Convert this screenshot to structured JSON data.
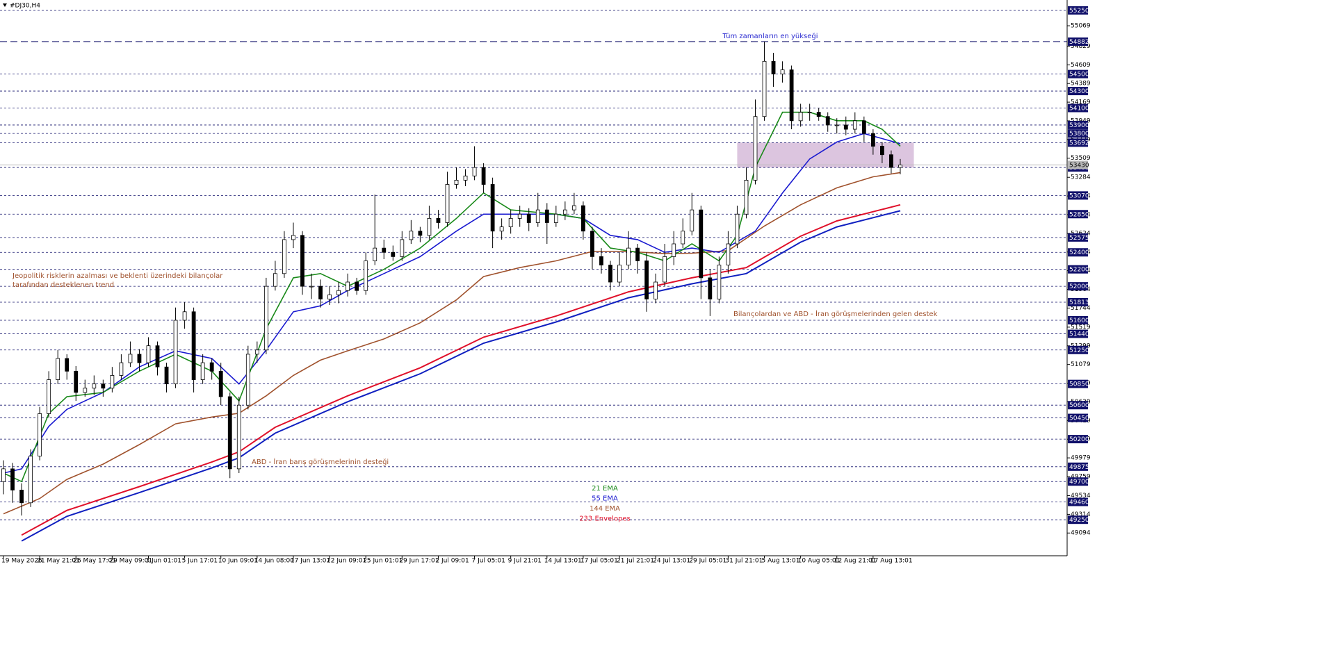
{
  "chart_data": {
    "type": "candlestick",
    "title": "#DJ30,H4",
    "categories": [
      "19 May 2026",
      null,
      null,
      null,
      "21 May 21:01",
      null,
      null,
      null,
      "26 May 17:01",
      null,
      null,
      null,
      "29 May 09:01",
      null,
      null,
      null,
      "3 Jun 01:01",
      null,
      null,
      null,
      "5 Jun 17:01",
      null,
      null,
      null,
      "10 Jun 09:01",
      null,
      null,
      null,
      "14 Jun 08:00",
      null,
      null,
      null,
      "17 Jun 13:01",
      null,
      null,
      null,
      "22 Jun 09:01",
      null,
      null,
      null,
      "25 Jun 01:01",
      null,
      null,
      null,
      "29 Jun 17:01",
      null,
      null,
      null,
      "2 Jul 09:01",
      null,
      null,
      null,
      "7 Jul 05:01",
      null,
      null,
      null,
      "9 Jul 21:01",
      null,
      null,
      null,
      "14 Jul 13:01",
      null,
      null,
      null,
      "17 Jul 05:01",
      null,
      null,
      null,
      "21 Jul 21:01",
      null,
      null,
      null,
      "24 Jul 13:01",
      null,
      null,
      null,
      "29 Jul 05:01",
      null,
      null,
      null,
      "31 Jul 21:01",
      null,
      null,
      null,
      "5 Aug 13:01",
      null,
      null,
      null,
      "10 Aug 05:01",
      null,
      null,
      null,
      "12 Aug 21:01",
      null,
      null,
      null,
      "17 Aug 13:01",
      null,
      null,
      null
    ],
    "open": [
      49700,
      49850,
      49600,
      49450,
      50000,
      50500,
      50900,
      51150,
      51000,
      50750,
      50800,
      50850,
      50800,
      50950,
      51100,
      51200,
      51100,
      51300,
      51050,
      50850,
      51600,
      51700,
      50900,
      51100,
      51000,
      50700,
      49850,
      50600,
      51200,
      51250,
      52000,
      52150,
      52550,
      52600,
      52000,
      52000,
      51850,
      51900,
      51950,
      52050,
      51950,
      52300,
      52450,
      52400,
      52350,
      52550,
      52650,
      52600,
      52800,
      52750,
      53200,
      53250,
      53300,
      53400,
      53200,
      52650,
      52700,
      52800,
      52850,
      52750,
      52900,
      52750,
      52850,
      52900,
      52950,
      52650,
      52350,
      52250,
      52050,
      52250,
      52450,
      52300,
      51850,
      52050,
      52350,
      52500,
      52650,
      52900,
      52100,
      51850,
      52250,
      52500,
      52850,
      53250,
      54000,
      54650,
      54500,
      54550,
      53950,
      54050,
      54050,
      54000,
      53900,
      53900,
      53850,
      53950,
      53800,
      53650,
      53550,
      53400
    ],
    "high": [
      49950,
      49920,
      49680,
      50080,
      50580,
      51000,
      51250,
      51200,
      51060,
      50900,
      50950,
      50900,
      51050,
      51200,
      51350,
      51260,
      51400,
      51350,
      51100,
      51750,
      51813,
      51750,
      51200,
      51150,
      51100,
      50750,
      50700,
      51300,
      51350,
      52100,
      52300,
      52650,
      52750,
      52650,
      52150,
      52080,
      52000,
      52050,
      52150,
      52100,
      52400,
      53080,
      52550,
      52480,
      52650,
      52780,
      52700,
      52950,
      52900,
      53350,
      53400,
      53380,
      53650,
      53450,
      53280,
      52800,
      52900,
      52950,
      52920,
      53100,
      52980,
      52950,
      53000,
      53100,
      53000,
      52700,
      52450,
      52300,
      52400,
      52650,
      52500,
      52400,
      52150,
      52500,
      52650,
      52800,
      53100,
      52950,
      52200,
      52350,
      52650,
      52950,
      53400,
      54200,
      54882,
      54750,
      54650,
      54600,
      54150,
      54150,
      54100,
      54050,
      53980,
      54000,
      54050,
      54000,
      53850,
      53700,
      53600,
      53500
    ],
    "low": [
      49550,
      49450,
      49300,
      49400,
      49950,
      50450,
      50850,
      50900,
      50650,
      50700,
      50720,
      50700,
      50750,
      50900,
      51050,
      51000,
      51050,
      50950,
      50750,
      50800,
      51500,
      50750,
      50850,
      50900,
      50600,
      49740,
      49800,
      50550,
      51100,
      51200,
      51950,
      52100,
      52450,
      51900,
      51850,
      51750,
      51780,
      51800,
      51880,
      51900,
      51900,
      52250,
      52320,
      52300,
      52300,
      52500,
      52520,
      52550,
      52680,
      52700,
      53150,
      53180,
      53250,
      53100,
      52450,
      52550,
      52620,
      52700,
      52650,
      52700,
      52500,
      52700,
      52780,
      52850,
      52550,
      52200,
      52150,
      51950,
      52000,
      52200,
      52150,
      51700,
      51800,
      52000,
      52250,
      52450,
      52600,
      51850,
      51650,
      51800,
      52150,
      52450,
      52800,
      53200,
      53950,
      54350,
      54400,
      53850,
      53880,
      53950,
      53950,
      53820,
      53800,
      53780,
      53800,
      53700,
      53550,
      53450,
      53330,
      53320
    ],
    "close": [
      49850,
      49600,
      49450,
      50000,
      50500,
      50900,
      51150,
      51000,
      50750,
      50800,
      50850,
      50800,
      50950,
      51100,
      51200,
      51100,
      51300,
      51050,
      50850,
      51600,
      51700,
      50900,
      51100,
      51000,
      50700,
      49850,
      50600,
      51200,
      51250,
      52000,
      52150,
      52550,
      52600,
      52000,
      52000,
      51850,
      51900,
      51950,
      52050,
      51950,
      52300,
      52450,
      52400,
      52350,
      52550,
      52650,
      52600,
      52800,
      52750,
      53200,
      53250,
      53300,
      53400,
      53200,
      52650,
      52700,
      52800,
      52850,
      52750,
      52900,
      52750,
      52850,
      52900,
      52950,
      52650,
      52350,
      52250,
      52050,
      52250,
      52450,
      52300,
      51850,
      52050,
      52350,
      52500,
      52650,
      52900,
      52100,
      51850,
      52250,
      52500,
      52850,
      53250,
      54000,
      54650,
      54500,
      54550,
      53950,
      54050,
      54050,
      54000,
      53900,
      53900,
      53850,
      53950,
      53800,
      53650,
      53550,
      53400,
      53430
    ],
    "series": [
      {
        "name": "21 EMA",
        "color": "#1a8a1a",
        "x": [
          0,
          2,
          5,
          7,
          11,
          15,
          19,
          23,
          26,
          29,
          32,
          35,
          38,
          42,
          46,
          50,
          53,
          56,
          61,
          64,
          67,
          70,
          73,
          76,
          79,
          81,
          83,
          86,
          89,
          92,
          95,
          97,
          99
        ],
        "values": [
          49800,
          49700,
          50500,
          50700,
          50750,
          51000,
          51200,
          51000,
          50650,
          51500,
          52100,
          52150,
          52000,
          52200,
          52450,
          52800,
          53100,
          52900,
          52850,
          52800,
          52450,
          52400,
          52300,
          52500,
          52300,
          52600,
          53400,
          54050,
          54050,
          53950,
          53950,
          53850,
          53650
        ]
      },
      {
        "name": "55 EMA",
        "color": "#1a1ad0",
        "x": [
          0,
          2,
          5,
          7,
          11,
          15,
          19,
          23,
          26,
          29,
          32,
          35,
          38,
          42,
          46,
          50,
          53,
          56,
          61,
          64,
          67,
          70,
          73,
          76,
          79,
          83,
          86,
          89,
          92,
          95,
          99
        ],
        "values": [
          49800,
          49850,
          50350,
          50550,
          50750,
          51050,
          51240,
          51150,
          50850,
          51250,
          51700,
          51770,
          51950,
          52150,
          52350,
          52650,
          52850,
          52850,
          52850,
          52800,
          52600,
          52550,
          52400,
          52450,
          52400,
          52650,
          53100,
          53500,
          53700,
          53800,
          53680
        ]
      },
      {
        "name": "144 EMA",
        "color": "#a0522d",
        "x": [
          0,
          4,
          7,
          11,
          15,
          19,
          23,
          26,
          29,
          32,
          35,
          38,
          42,
          46,
          50,
          53,
          57,
          61,
          65,
          69,
          73,
          76,
          80,
          84,
          88,
          92,
          96,
          99
        ],
        "values": [
          49320,
          49500,
          49725,
          49905,
          50135,
          50380,
          50460,
          50505,
          50710,
          50950,
          51130,
          51240,
          51380,
          51570,
          51840,
          52115,
          52220,
          52300,
          52410,
          52410,
          52385,
          52390,
          52420,
          52710,
          52960,
          53160,
          53290,
          53340
        ]
      },
      {
        "name": "233 Envelopes",
        "color": "#e0102a",
        "x": [
          2,
          7,
          15,
          23,
          26,
          30,
          38,
          46,
          53,
          61,
          69,
          76,
          82,
          88,
          92,
          99
        ],
        "values": [
          49070,
          49360,
          49640,
          49930,
          50050,
          50340,
          50710,
          51040,
          51400,
          51650,
          51935,
          52100,
          52220,
          52590,
          52770,
          52960
        ]
      }
    ],
    "envelope_lower": {
      "color": "#1020c0",
      "x": [
        2,
        7,
        15,
        23,
        26,
        30,
        38,
        46,
        53,
        61,
        69,
        76,
        82,
        88,
        92,
        99
      ],
      "values": [
        49000,
        49290,
        49570,
        49860,
        49980,
        50270,
        50640,
        50970,
        51330,
        51580,
        51865,
        52030,
        52150,
        52520,
        52700,
        52890
      ]
    },
    "ylim": [
      48826,
      55307
    ],
    "yticks": [
      55069,
      54829,
      54609,
      54389,
      54169,
      53949,
      53729,
      53509,
      53284,
      53064,
      52844,
      52624,
      52404,
      52184,
      51964,
      51744,
      51519,
      51299,
      51079,
      50859,
      50639,
      50419,
      50199,
      49979,
      49759,
      49534,
      49314,
      49094
    ],
    "levels": [
      55250,
      54500,
      54300,
      54100,
      53900,
      53800,
      53692,
      53400,
      53070,
      52850,
      52575,
      52400,
      52200,
      52000,
      51813,
      51600,
      51440,
      51250,
      50850,
      50600,
      50450,
      50200,
      49875,
      49700,
      49460,
      49250
    ],
    "level_color": "#10106a",
    "ath_level": 54882,
    "current_price": 53430,
    "zone": {
      "ylim": [
        53400,
        53692
      ],
      "xlim": [
        81,
        100.5
      ],
      "color": "#d8bfdc"
    },
    "annotations": [
      {
        "lines": [
          "Tüm zamanların en yükseği"
        ],
        "color": "#2a2ad0"
      },
      {
        "lines": [
          "Jeopolitik risklerin azalması ve beklenti üzerindeki bilançolar",
          "tarafından desteklenen trend"
        ],
        "color": "#a0522d"
      },
      {
        "lines": [
          "Bilançolardan ve ABD - İran görüşmelerinden gelen destek"
        ],
        "color": "#a0522d"
      },
      {
        "lines": [
          "ABD - İran barış görüşmelerinin desteği"
        ],
        "color": "#a0522d"
      }
    ]
  }
}
